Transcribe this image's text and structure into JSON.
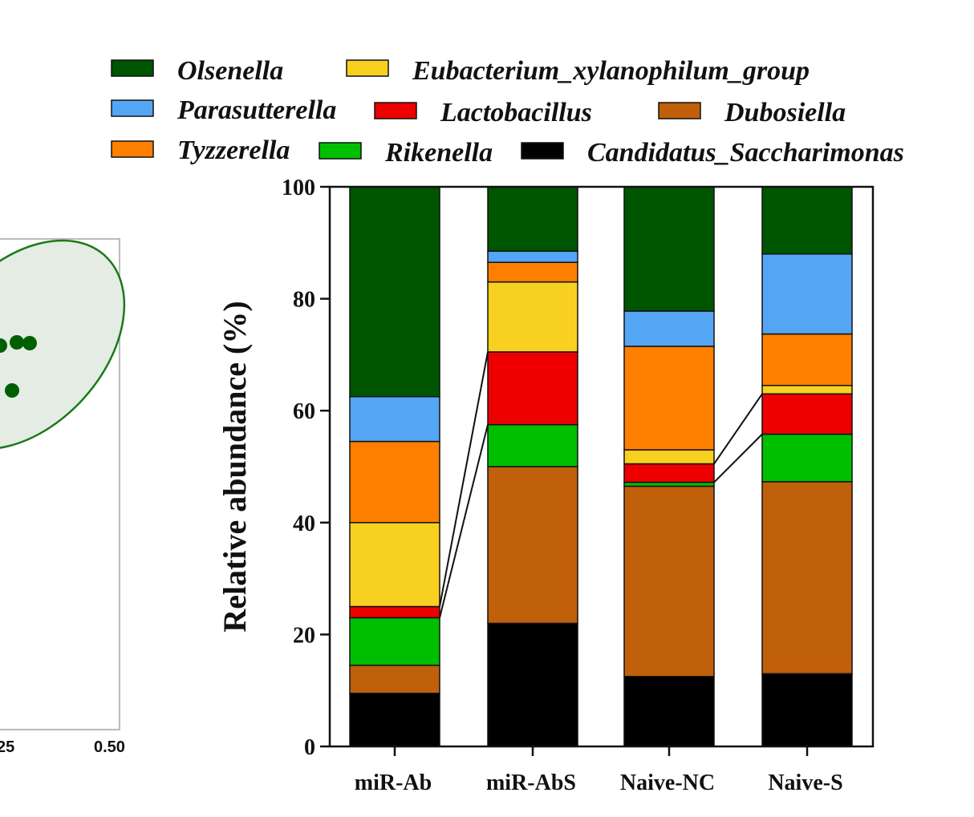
{
  "chart_data": [
    {
      "type": "bar",
      "stacked": true,
      "ylabel": "Relative abundance (%)",
      "xlabel": "",
      "ylim": [
        0,
        100
      ],
      "yticks": [
        "0",
        "20",
        "40",
        "60",
        "80",
        "100"
      ],
      "categories": [
        "miR-Ab",
        "miR-AbS",
        "Naive-NC",
        "Naive-S"
      ],
      "legend": [
        "Olsenella",
        "Eubacterium_xylanophilum_group",
        "Parasutterella",
        "Lactobacillus",
        "Dubosiella",
        "Tyzzerella",
        "Rikenella",
        "Candidatus_Saccharimonas"
      ],
      "series": [
        {
          "name": "Candidatus_Saccharimonas",
          "color": "#000000",
          "values": [
            9.5,
            22.0,
            12.5,
            13.0
          ]
        },
        {
          "name": "Dubosiella",
          "color": "#c0600a",
          "values": [
            5.0,
            28.0,
            34.0,
            34.3
          ]
        },
        {
          "name": "Rikenella",
          "color": "#00bf00",
          "values": [
            8.5,
            7.5,
            0.7,
            8.5
          ]
        },
        {
          "name": "Lactobacillus",
          "color": "#ee0000",
          "values": [
            2.0,
            13.0,
            3.3,
            7.2
          ]
        },
        {
          "name": "Eubacterium_xylanophilum_group",
          "color": "#f8d020",
          "values": [
            15.0,
            12.5,
            2.5,
            1.5
          ]
        },
        {
          "name": "Tyzzerella",
          "color": "#ff8000",
          "values": [
            14.5,
            3.5,
            18.5,
            9.2
          ]
        },
        {
          "name": "Parasutterella",
          "color": "#55a5f5",
          "values": [
            8.0,
            2.0,
            6.3,
            14.3
          ]
        },
        {
          "name": "Olsenella",
          "color": "#005500",
          "values": [
            37.5,
            11.5,
            22.2,
            12.0
          ]
        }
      ]
    },
    {
      "type": "scatter",
      "partial": true,
      "xtick_labels": [
        "25",
        "0.50"
      ],
      "group_color": "#006000"
    }
  ]
}
